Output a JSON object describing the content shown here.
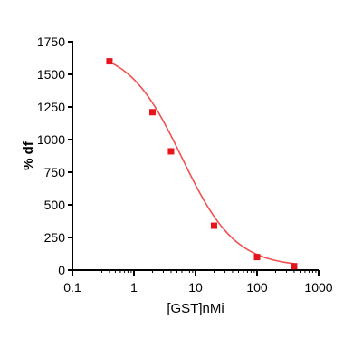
{
  "chart_data": {
    "type": "scatter",
    "title": "",
    "xlabel": "[GST]nMi",
    "ylabel": "% df",
    "x_scale": "log",
    "xlim": [
      0.1,
      1000
    ],
    "ylim": [
      0,
      1750
    ],
    "x_ticks": [
      0.1,
      1,
      10,
      100,
      1000
    ],
    "x_tick_labels": [
      "0.1",
      "1",
      "10",
      "100",
      "1000"
    ],
    "y_ticks": [
      0,
      250,
      500,
      750,
      1000,
      1250,
      1500,
      1750
    ],
    "y_tick_labels": [
      "0",
      "250",
      "500",
      "750",
      "1000",
      "1250",
      "1500",
      "1750"
    ],
    "grid": false,
    "legend": "none",
    "series": [
      {
        "points": [
          {
            "x": 0.4,
            "y": 1600
          },
          {
            "x": 2,
            "y": 1210
          },
          {
            "x": 4,
            "y": 910
          },
          {
            "x": 20,
            "y": 340
          },
          {
            "x": 100,
            "y": 100
          },
          {
            "x": 400,
            "y": 30
          }
        ],
        "marker_color": "#e8141c",
        "fit_curve": {
          "type": "sigmoid-log",
          "top": 1700,
          "bottom": 25,
          "ec50": 6,
          "hill": 1.0,
          "x_range": [
            0.4,
            400
          ],
          "color": "#f05050"
        }
      }
    ]
  }
}
